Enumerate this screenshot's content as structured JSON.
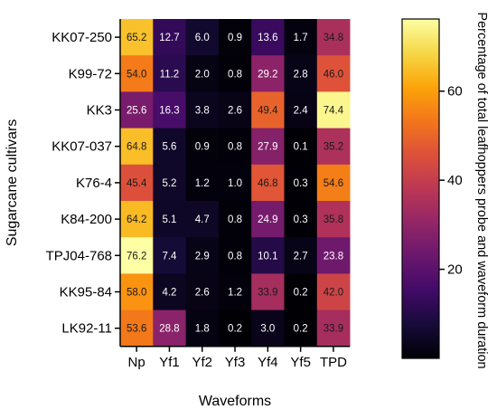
{
  "chart_data": {
    "type": "heatmap",
    "title": "",
    "xlabel": "Waveforms",
    "ylabel": "Sugarcane cultivars",
    "colorbar_label": "Percentage of total leafhoppers probe and waveform duration",
    "colorbar_ticks": [
      20,
      40,
      60
    ],
    "colorbar_range": [
      0,
      76.2
    ],
    "colormap": "inferno",
    "x_categories": [
      "Np",
      "Yf1",
      "Yf2",
      "Yf3",
      "Yf4",
      "Yf5",
      "TPD"
    ],
    "y_categories": [
      "KK07-250",
      "K99-72",
      "KK3",
      "KK07-037",
      "K76-4",
      "K84-200",
      "TPJ04-768",
      "KK95-84",
      "LK92-11"
    ],
    "values": [
      [
        65.2,
        12.7,
        6.0,
        0.9,
        13.6,
        1.7,
        34.8
      ],
      [
        54.0,
        11.2,
        2.0,
        0.8,
        29.2,
        2.8,
        46.0
      ],
      [
        25.6,
        16.3,
        3.8,
        2.6,
        49.4,
        2.4,
        74.4
      ],
      [
        64.8,
        5.6,
        0.9,
        0.8,
        27.9,
        0.1,
        35.2
      ],
      [
        45.4,
        5.2,
        1.2,
        1.0,
        46.8,
        0.3,
        54.6
      ],
      [
        64.2,
        5.1,
        4.7,
        0.8,
        24.9,
        0.3,
        35.8
      ],
      [
        76.2,
        7.4,
        2.9,
        0.8,
        10.1,
        2.7,
        23.8
      ],
      [
        58.0,
        4.2,
        2.6,
        1.2,
        33.9,
        0.2,
        42.0
      ],
      [
        53.6,
        28.8,
        1.8,
        0.2,
        3.0,
        0.2,
        33.9
      ]
    ],
    "value_labels": [
      [
        "65.2",
        "12.7",
        "6.0",
        "0.9",
        "13.6",
        "1.7",
        "34.8"
      ],
      [
        "54.0",
        "11.2",
        "2.0",
        "0.8",
        "29.2",
        "2.8",
        "46.0"
      ],
      [
        "25.6",
        "16.3",
        "3.8",
        "2.6",
        "49.4",
        "2.4",
        "74.4"
      ],
      [
        "64.8",
        "5.6",
        "0.9",
        "0.8",
        "27.9",
        "0.1",
        "35.2"
      ],
      [
        "45.4",
        "5.2",
        "1.2",
        "1.0",
        "46.8",
        "0.3",
        "54.6"
      ],
      [
        "64.2",
        "5.1",
        "4.7",
        "0.8",
        "24.9",
        "0.3",
        "35.8"
      ],
      [
        "76.2",
        "7.4",
        "2.9",
        "0.8",
        "10.1",
        "2.7",
        "23.8"
      ],
      [
        "58.0",
        "4.2",
        "2.6",
        "1.2",
        "33.9",
        "0.2",
        "42.0"
      ],
      [
        "53.6",
        "28.8",
        "1.8",
        "0.2",
        "3.0",
        "0.2",
        "33.9"
      ]
    ]
  }
}
